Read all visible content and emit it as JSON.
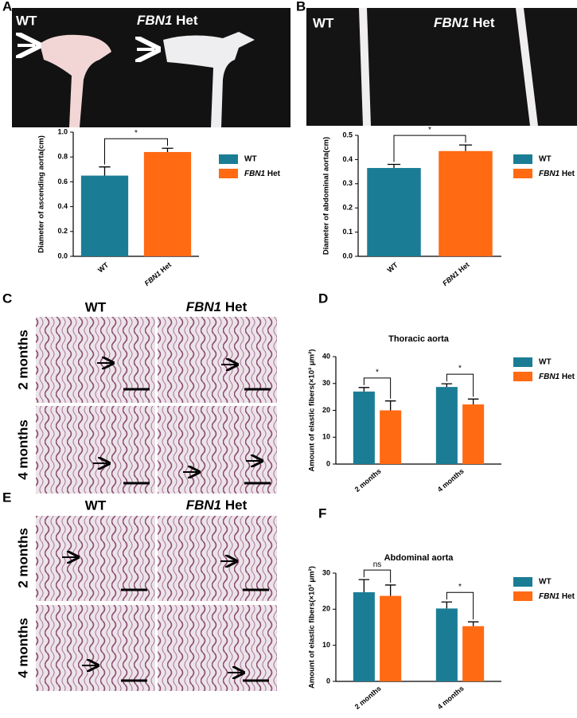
{
  "figure": {
    "panel_labels": [
      "A",
      "B",
      "C",
      "D",
      "E",
      "F"
    ],
    "photo_a_labels": [
      "WT",
      "FBN1 Het"
    ],
    "photo_b_labels": [
      "WT",
      "FBN1 Het"
    ],
    "histology_c": {
      "columns": [
        "WT",
        "FBN1 Het"
      ],
      "rows": [
        "2 months",
        "4 months"
      ]
    },
    "histology_e": {
      "columns": [
        "WT",
        "FBN1 Het"
      ],
      "rows": [
        "2 months",
        "4 months"
      ]
    }
  },
  "chart_data": [
    {
      "type": "bar",
      "y_label": "Diameter of ascending aorta(cm)",
      "categories": [
        "WT",
        "FBN1 Het"
      ],
      "values": [
        0.65,
        0.84
      ],
      "errors": [
        0.07,
        0.03
      ],
      "colors": [
        "#1a7d95",
        "#ff6a13"
      ],
      "ylim": [
        0,
        1
      ],
      "yticks": [
        {
          "value": 0,
          "label": "0.0"
        },
        0.2,
        0.4,
        0.6,
        0.8,
        {
          "value": 1,
          "label": "1.0"
        }
      ],
      "annotations": [
        "*"
      ],
      "legend": "right"
    },
    {
      "type": "bar",
      "y_label": "Diameter of abdominal aorta(cm)",
      "categories": [
        "WT",
        "FBN1 Het"
      ],
      "values": [
        0.365,
        0.435
      ],
      "errors": [
        0.015,
        0.025
      ],
      "colors": [
        "#1a7d95",
        "#ff6a13"
      ],
      "ylim": [
        0,
        0.5
      ],
      "yticks": [
        {
          "value": 0,
          "label": "0.0"
        },
        0.1,
        0.2,
        0.3,
        0.4,
        0.5
      ],
      "annotations": [
        "*"
      ],
      "legend": "right"
    },
    {
      "type": "bar",
      "title": "Thoracic aorta",
      "y_label": "Amount of elastic fibers(×10³ μm²)",
      "categories": [
        "2 months",
        "4 months"
      ],
      "series": [
        {
          "name": "WT",
          "color": "#1a7d95",
          "values": [
            27,
            28.7
          ],
          "errors": [
            1.5,
            1.2
          ]
        },
        {
          "name": "FBN1 Het",
          "color": "#ff6a13",
          "values": [
            20,
            22.2
          ],
          "errors": [
            3.5,
            2
          ]
        }
      ],
      "ylim": [
        0,
        40
      ],
      "yticks": [
        0,
        10,
        20,
        30,
        40
      ],
      "annotations": [
        "*",
        "*"
      ],
      "legend": "right"
    },
    {
      "type": "bar",
      "title": "Abdominal aorta",
      "y_label": "Amount of elastic fibers(×10³ μm²)",
      "categories": [
        "2 months",
        "4 months"
      ],
      "series": [
        {
          "name": "WT",
          "color": "#1a7d95",
          "values": [
            24.7,
            20.2
          ],
          "errors": [
            3.5,
            1.8
          ]
        },
        {
          "name": "FBN1 Het",
          "color": "#ff6a13",
          "values": [
            23.7,
            15.3
          ],
          "errors": [
            3,
            1.2
          ]
        }
      ],
      "ylim": [
        0,
        30
      ],
      "yticks": [
        0,
        10,
        20,
        30
      ],
      "annotations": [
        "ns",
        "*"
      ],
      "legend": "right"
    }
  ]
}
